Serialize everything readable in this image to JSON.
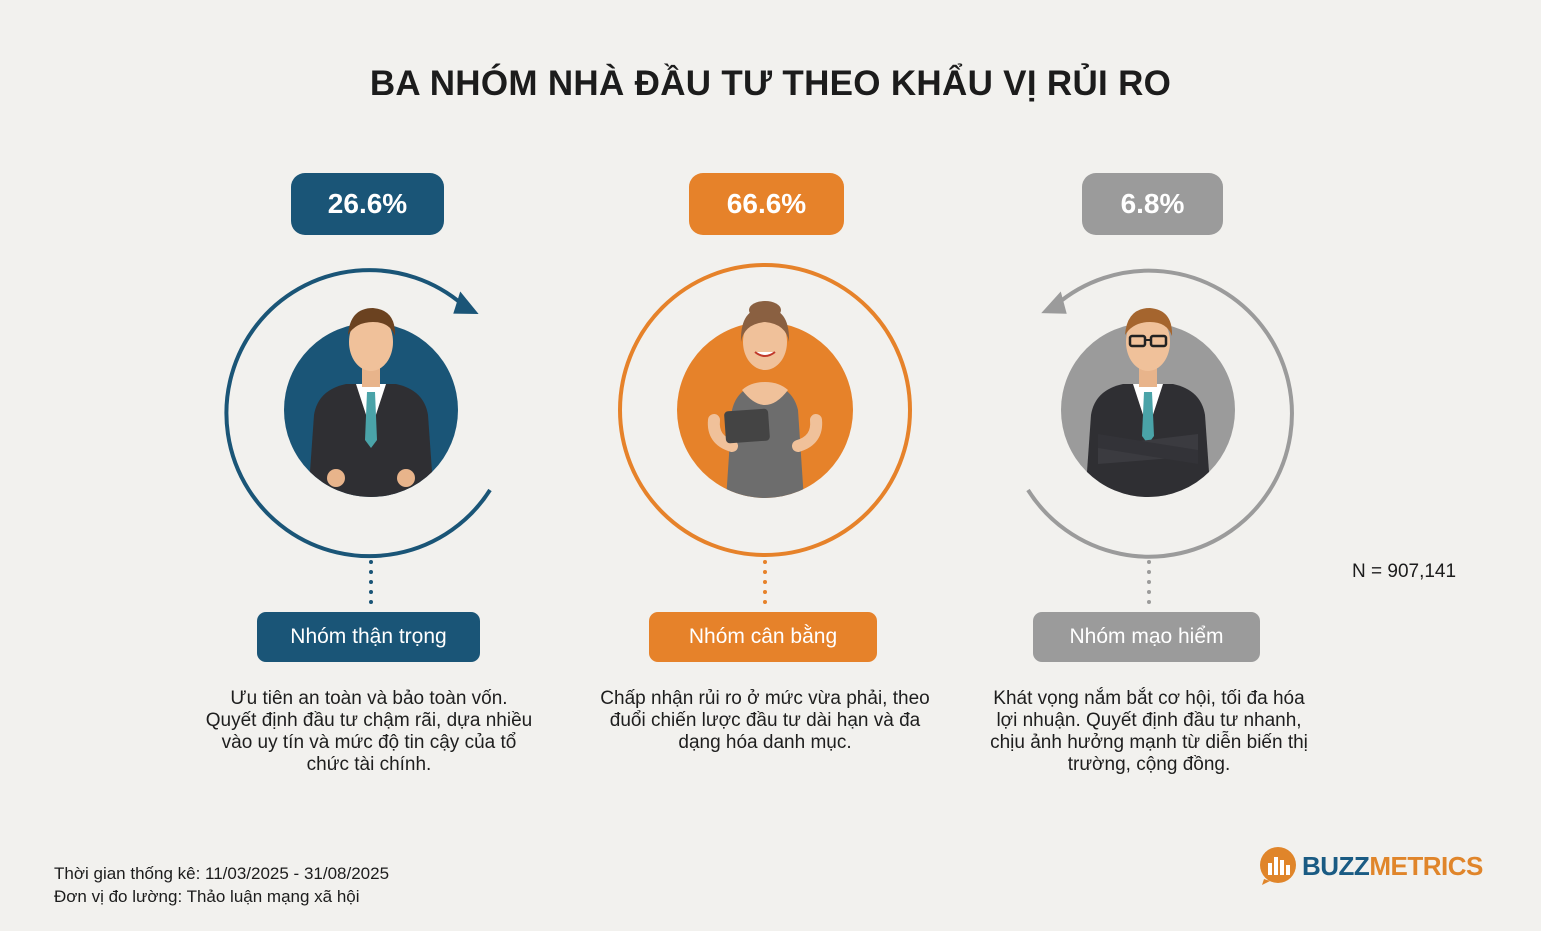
{
  "title": "BA NHÓM NHÀ ĐẦU TƯ THEO KHẨU VỊ RỦI RO",
  "groups": [
    {
      "percent": "26.6%",
      "label": "Nhóm thận trọng",
      "description": "Ưu tiên an toàn và bảo toàn vốn. Quyết định đầu tư chậm rãi, dựa nhiều vào uy tín và mức độ tin cậy của tổ chức tài chính.",
      "color": "#1a5577",
      "icon": "businessman-avatar-icon"
    },
    {
      "percent": "66.6%",
      "label": "Nhóm cân bằng",
      "description": "Chấp nhận rủi ro ở mức vừa phải, theo đuổi chiến lược đầu tư dài hạn và đa dạng hóa danh mục.",
      "color": "#e6822a",
      "icon": "businesswoman-tablet-avatar-icon"
    },
    {
      "percent": "6.8%",
      "label": "Nhóm mạo hiểm",
      "description": "Khát vọng nắm bắt cơ hội, tối đa hóa lợi nhuận. Quyết định đầu tư nhanh, chịu ảnh hưởng mạnh từ diễn biến thị trường, cộng đồng.",
      "color": "#9b9b9b",
      "icon": "businessman-glasses-avatar-icon"
    }
  ],
  "chart_data": {
    "type": "bar",
    "categories": [
      "Nhóm thận trọng",
      "Nhóm cân bằng",
      "Nhóm mạo hiểm"
    ],
    "values": [
      26.6,
      66.6,
      6.8
    ],
    "title": "BA NHÓM NHÀ ĐẦU TƯ THEO KHẨU VỊ RỦI RO",
    "unit": "%"
  },
  "sample_size": "N = 907,141",
  "footer": {
    "period": "Thời gian thống kê: 11/03/2025 - 31/08/2025",
    "unit": "Đơn vị đo lường: Thảo luận mạng xã hội"
  },
  "logo": {
    "part1": "BUZZ",
    "part2": "METRICS",
    "icon": "bar-chart-logo-icon"
  }
}
